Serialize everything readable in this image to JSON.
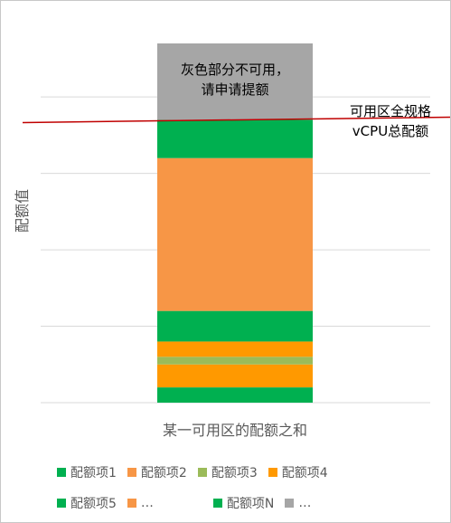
{
  "chart_data": {
    "type": "bar",
    "stacked": true,
    "categories": [
      "某一可用区的配额之和"
    ],
    "ylabel": "配额值",
    "xlabel": "",
    "grid": true,
    "legend_position": "bottom",
    "series": [
      {
        "name": "配额项1",
        "color": "#00b050",
        "value": 2
      },
      {
        "name": "配额项2",
        "color": "#ff9900",
        "value": 3
      },
      {
        "name": "配额项3",
        "color": "#9bbb59",
        "value": 1
      },
      {
        "name": "配额项4",
        "color": "#ff9900",
        "value": 2
      },
      {
        "name": "配额项5",
        "color": "#00b050",
        "value": 4
      },
      {
        "name": "…",
        "color": "#f79646",
        "value": 20
      },
      {
        "name": "配额项N",
        "color": "#00b050",
        "value": 5
      },
      {
        "name": "…",
        "color": "#a6a6a6",
        "value": 10
      }
    ],
    "ylim": [
      0,
      47
    ],
    "reference_line": {
      "value": 37,
      "color": "#c00000",
      "label_line1": "可用区全规格",
      "label_line2": "vCPU总配额"
    },
    "annotations": {
      "gray_note_line1": "灰色部分不可用，",
      "gray_note_line2": "请申请提额"
    }
  }
}
